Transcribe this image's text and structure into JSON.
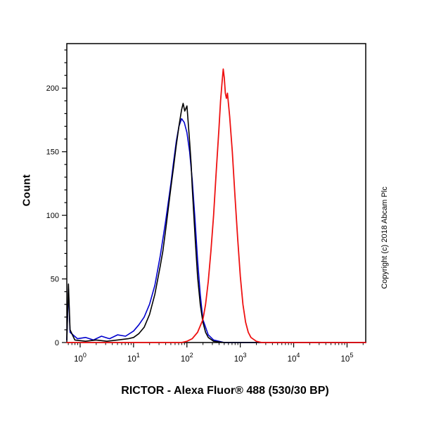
{
  "chart_data": {
    "type": "line",
    "title": "",
    "xlabel": "RICTOR - Alexa Fluor® 488 (530/30 BP)",
    "ylabel": "Count",
    "x_scale": "log10",
    "grid": false,
    "legend": "none",
    "x_axis": {
      "min_log10": -0.25,
      "max_log10": 5.35,
      "major_tick_exponents": [
        0,
        1,
        2,
        3,
        4,
        5
      ]
    },
    "y_axis": {
      "min": 0,
      "max": 235,
      "major_ticks": [
        0,
        50,
        100,
        150,
        200
      ],
      "minor_tick_step": 10
    },
    "series": [
      {
        "name": "blue",
        "color": "#0000cd",
        "points": [
          [
            -0.25,
            2
          ],
          [
            -0.22,
            42
          ],
          [
            -0.19,
            8
          ],
          [
            -0.05,
            3
          ],
          [
            0.1,
            4
          ],
          [
            0.25,
            2
          ],
          [
            0.4,
            5
          ],
          [
            0.55,
            3
          ],
          [
            0.7,
            6
          ],
          [
            0.85,
            5
          ],
          [
            1.0,
            9
          ],
          [
            1.1,
            14
          ],
          [
            1.2,
            20
          ],
          [
            1.3,
            30
          ],
          [
            1.4,
            45
          ],
          [
            1.5,
            68
          ],
          [
            1.6,
            95
          ],
          [
            1.7,
            125
          ],
          [
            1.75,
            142
          ],
          [
            1.8,
            158
          ],
          [
            1.85,
            170
          ],
          [
            1.9,
            176
          ],
          [
            1.95,
            173
          ],
          [
            2.0,
            165
          ],
          [
            2.05,
            150
          ],
          [
            2.1,
            128
          ],
          [
            2.15,
            98
          ],
          [
            2.2,
            65
          ],
          [
            2.25,
            38
          ],
          [
            2.3,
            18
          ],
          [
            2.4,
            6
          ],
          [
            2.5,
            2
          ],
          [
            2.7,
            0
          ],
          [
            5.35,
            0
          ]
        ]
      },
      {
        "name": "black",
        "color": "#000000",
        "points": [
          [
            -0.25,
            2
          ],
          [
            -0.22,
            46
          ],
          [
            -0.19,
            10
          ],
          [
            -0.1,
            2
          ],
          [
            0.1,
            1
          ],
          [
            0.3,
            2
          ],
          [
            0.5,
            1
          ],
          [
            0.7,
            2
          ],
          [
            0.9,
            3
          ],
          [
            1.0,
            4
          ],
          [
            1.1,
            7
          ],
          [
            1.2,
            12
          ],
          [
            1.3,
            22
          ],
          [
            1.4,
            38
          ],
          [
            1.5,
            60
          ],
          [
            1.55,
            72
          ],
          [
            1.6,
            88
          ],
          [
            1.65,
            105
          ],
          [
            1.7,
            122
          ],
          [
            1.75,
            138
          ],
          [
            1.8,
            155
          ],
          [
            1.85,
            170
          ],
          [
            1.88,
            178
          ],
          [
            1.9,
            183
          ],
          [
            1.93,
            188
          ],
          [
            1.96,
            182
          ],
          [
            2.0,
            186
          ],
          [
            2.02,
            175
          ],
          [
            2.05,
            158
          ],
          [
            2.08,
            140
          ],
          [
            2.1,
            122
          ],
          [
            2.13,
            100
          ],
          [
            2.16,
            78
          ],
          [
            2.2,
            52
          ],
          [
            2.25,
            30
          ],
          [
            2.3,
            16
          ],
          [
            2.35,
            8
          ],
          [
            2.4,
            4
          ],
          [
            2.5,
            1
          ],
          [
            2.7,
            0
          ],
          [
            5.35,
            0
          ]
        ]
      },
      {
        "name": "red",
        "color": "#ee1111",
        "points": [
          [
            -0.25,
            0
          ],
          [
            1.9,
            0
          ],
          [
            2.0,
            1
          ],
          [
            2.1,
            3
          ],
          [
            2.2,
            8
          ],
          [
            2.3,
            18
          ],
          [
            2.35,
            30
          ],
          [
            2.4,
            48
          ],
          [
            2.45,
            72
          ],
          [
            2.5,
            100
          ],
          [
            2.55,
            135
          ],
          [
            2.6,
            168
          ],
          [
            2.63,
            190
          ],
          [
            2.66,
            205
          ],
          [
            2.68,
            215
          ],
          [
            2.7,
            208
          ],
          [
            2.72,
            196
          ],
          [
            2.74,
            192
          ],
          [
            2.76,
            196
          ],
          [
            2.8,
            178
          ],
          [
            2.85,
            150
          ],
          [
            2.9,
            115
          ],
          [
            2.95,
            82
          ],
          [
            3.0,
            52
          ],
          [
            3.05,
            30
          ],
          [
            3.1,
            16
          ],
          [
            3.15,
            8
          ],
          [
            3.2,
            4
          ],
          [
            3.3,
            1
          ],
          [
            3.4,
            0
          ],
          [
            5.35,
            0
          ]
        ]
      }
    ],
    "annotations": {
      "copyright": "Copyright (c) 2018 Abcam Plc"
    }
  }
}
